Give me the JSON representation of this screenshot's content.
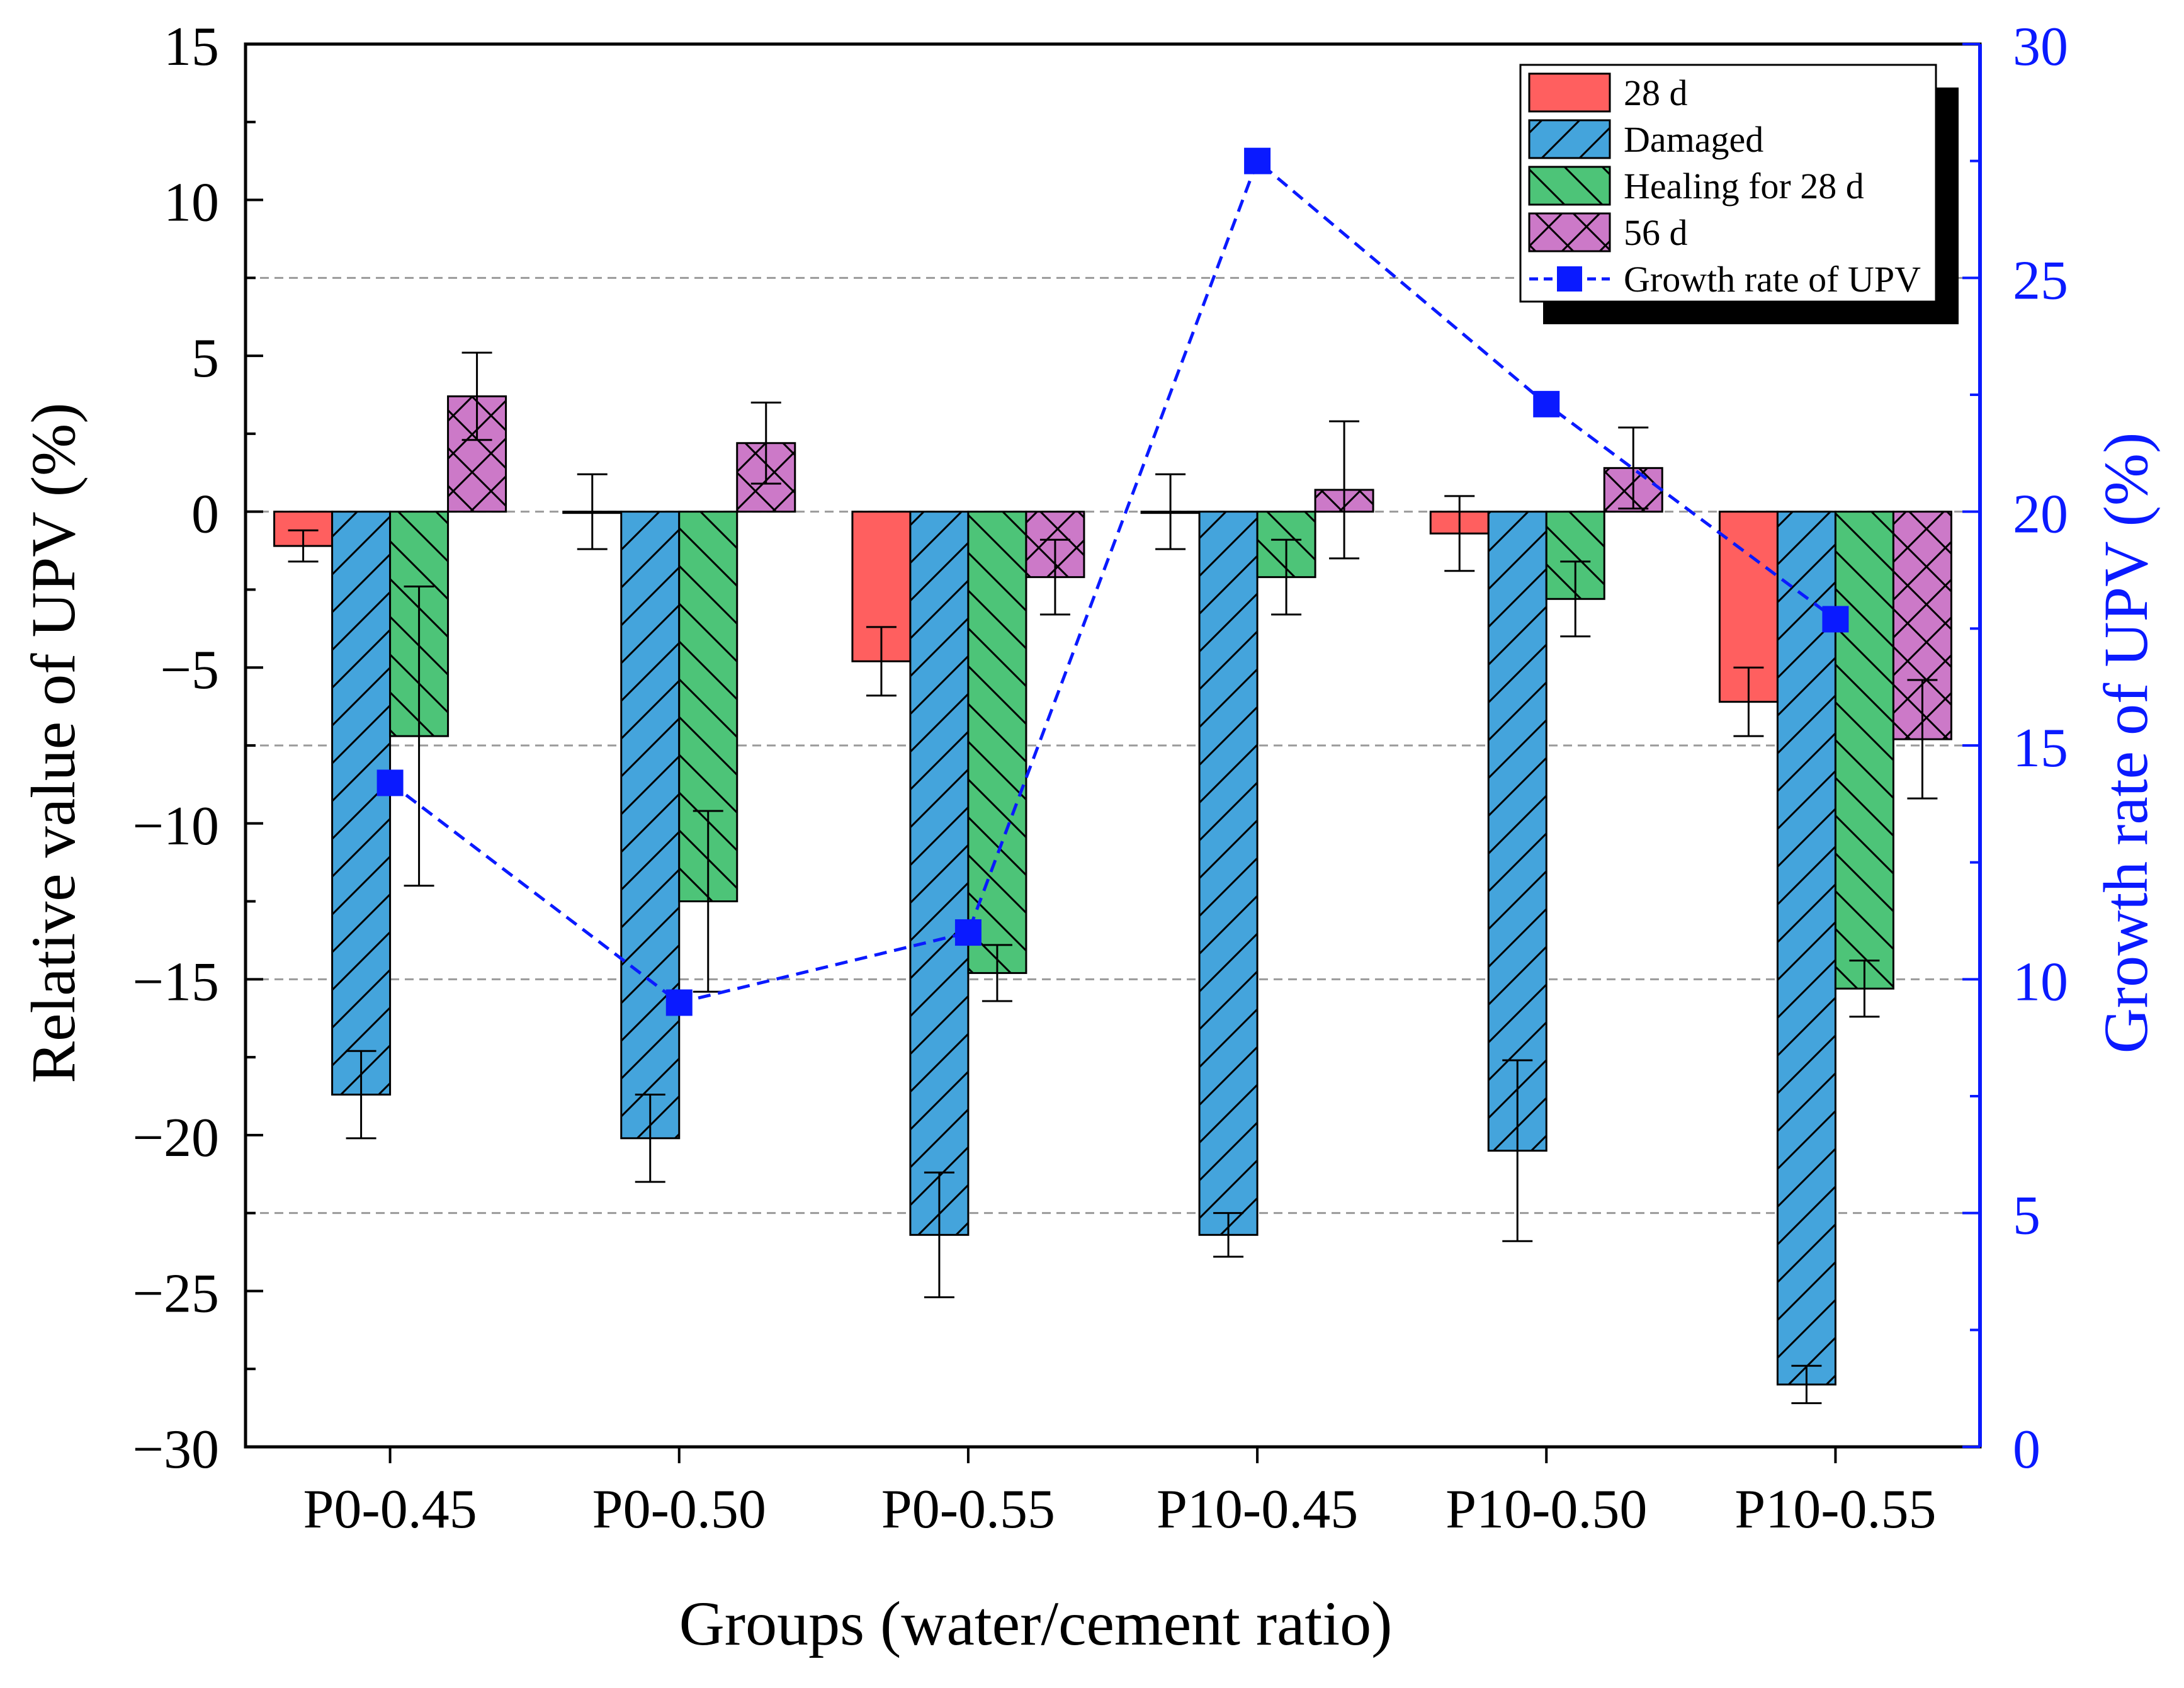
{
  "chart_data": {
    "type": "bar",
    "xlabel": "Groups (water/cement ratio)",
    "ylabel": "Relative value of UPV (%)",
    "y2label": "Growth rate of UPV (%)",
    "categories": [
      "P0-0.45",
      "P0-0.50",
      "P0-0.55",
      "P10-0.45",
      "P10-0.50",
      "P10-0.55"
    ],
    "ylim": [
      -30,
      15
    ],
    "yticks": [
      15,
      10,
      5,
      0,
      -5,
      -10,
      -15,
      -20,
      -25,
      -30
    ],
    "ytick_labels": [
      "15",
      "10",
      "5",
      "0",
      "−5",
      "−10",
      "−15",
      "−20",
      "−25",
      "−30"
    ],
    "y2lim": [
      0,
      30
    ],
    "y2ticks": [
      30,
      25,
      20,
      15,
      10,
      5,
      0
    ],
    "y2tick_labels": [
      "30",
      "25",
      "20",
      "15",
      "10",
      "5",
      "0"
    ],
    "gridlines_y": [
      7.5,
      0,
      -7.5,
      -15,
      -22.5
    ],
    "series": [
      {
        "name": "28 d",
        "color": "#ff5f5f",
        "pattern": "none",
        "values": [
          -1.1,
          0.0,
          -4.8,
          0.0,
          -0.7,
          -6.1
        ],
        "errors": [
          0.5,
          1.2,
          1.1,
          1.2,
          1.2,
          1.1
        ]
      },
      {
        "name": "Damaged",
        "color": "#44a4dc",
        "pattern": "forward-diagonal",
        "values": [
          -18.7,
          -20.1,
          -23.2,
          -23.2,
          -20.5,
          -28.0
        ],
        "errors": [
          1.4,
          1.4,
          2.0,
          0.7,
          2.9,
          0.6
        ]
      },
      {
        "name": "Healing for 28 d",
        "color": "#4dc478",
        "pattern": "back-diagonal",
        "values": [
          -7.2,
          -12.5,
          -14.8,
          -2.1,
          -2.8,
          -15.3
        ],
        "errors": [
          4.8,
          2.9,
          0.9,
          1.2,
          1.2,
          0.9
        ]
      },
      {
        "name": "56 d",
        "color": "#cc79c8",
        "pattern": "crosshatch",
        "values": [
          3.7,
          2.2,
          -2.1,
          0.7,
          1.4,
          -7.3
        ],
        "errors": [
          1.4,
          1.3,
          1.2,
          2.2,
          1.3,
          1.9
        ]
      }
    ],
    "line_series": {
      "name": "Growth rate of UPV",
      "color": "#0a1aff",
      "axis": "right",
      "points": [
        {
          "category": "P0-0.45",
          "value": 14.2
        },
        {
          "category": "P0-0.50",
          "value": 9.5
        },
        {
          "category": "P0-0.55",
          "value": 11.0
        },
        {
          "category": "P10-0.45",
          "value": 27.5
        },
        {
          "category": "P10-0.50",
          "value": 22.3
        },
        {
          "category": "P10-0.55",
          "value": 17.7
        }
      ]
    },
    "legend": {
      "position": "top-right",
      "entries": [
        "28 d",
        "Damaged",
        "Healing for 28 d",
        "56 d",
        "Growth rate of UPV"
      ]
    }
  }
}
